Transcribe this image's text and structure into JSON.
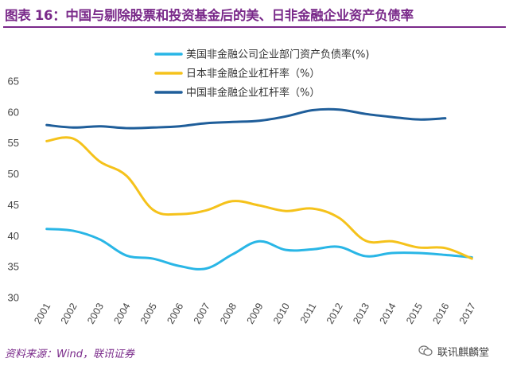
{
  "header": {
    "title": "图表 16：中国与剔除股票和投资基金后的美、日非金融企业资产负债率"
  },
  "footer": {
    "source": "资料来源：Wind，联讯证券",
    "watermark": "联讯麒麟堂"
  },
  "colors": {
    "title": "#7a2a8a",
    "us": "#29b6e6",
    "japan": "#f5c21b",
    "china": "#1f5e9a",
    "axis_text": "#444444"
  },
  "icons": {
    "watermark_icon": "wechat-icon"
  },
  "chart_data": {
    "type": "line",
    "title": "",
    "xlabel": "",
    "ylabel": "",
    "categories": [
      "2001",
      "2002",
      "2003",
      "2004",
      "2005",
      "2006",
      "2007",
      "2008",
      "2009",
      "2010",
      "2011",
      "2012",
      "2013",
      "2014",
      "2015",
      "2016",
      "2017"
    ],
    "ylim": [
      30,
      65
    ],
    "yticks": [
      30,
      35,
      40,
      45,
      50,
      55,
      60,
      65
    ],
    "grid": false,
    "legend_position": "top-center",
    "series": [
      {
        "name": "美国非金融公司企业部门资产负债率(%)",
        "color": "#29b6e6",
        "values": [
          41.1,
          40.8,
          39.4,
          36.8,
          36.3,
          35.1,
          34.7,
          37.0,
          39.1,
          37.7,
          37.8,
          38.2,
          36.7,
          37.2,
          37.2,
          36.9,
          36.5
        ]
      },
      {
        "name": "日本非金融企业杠杆率（%）",
        "color": "#f5c21b",
        "values": [
          55.3,
          55.7,
          52.0,
          49.7,
          44.2,
          43.5,
          44.1,
          45.6,
          44.9,
          44.0,
          44.4,
          42.9,
          39.2,
          39.1,
          38.1,
          38.0,
          36.3
        ]
      },
      {
        "name": "中国非金融企业杠杆率（%）",
        "color": "#1f5e9a",
        "values": [
          57.9,
          57.5,
          57.7,
          57.4,
          57.5,
          57.7,
          58.2,
          58.4,
          58.6,
          59.3,
          60.3,
          60.4,
          59.7,
          59.2,
          58.8,
          59.0,
          null
        ]
      }
    ]
  }
}
